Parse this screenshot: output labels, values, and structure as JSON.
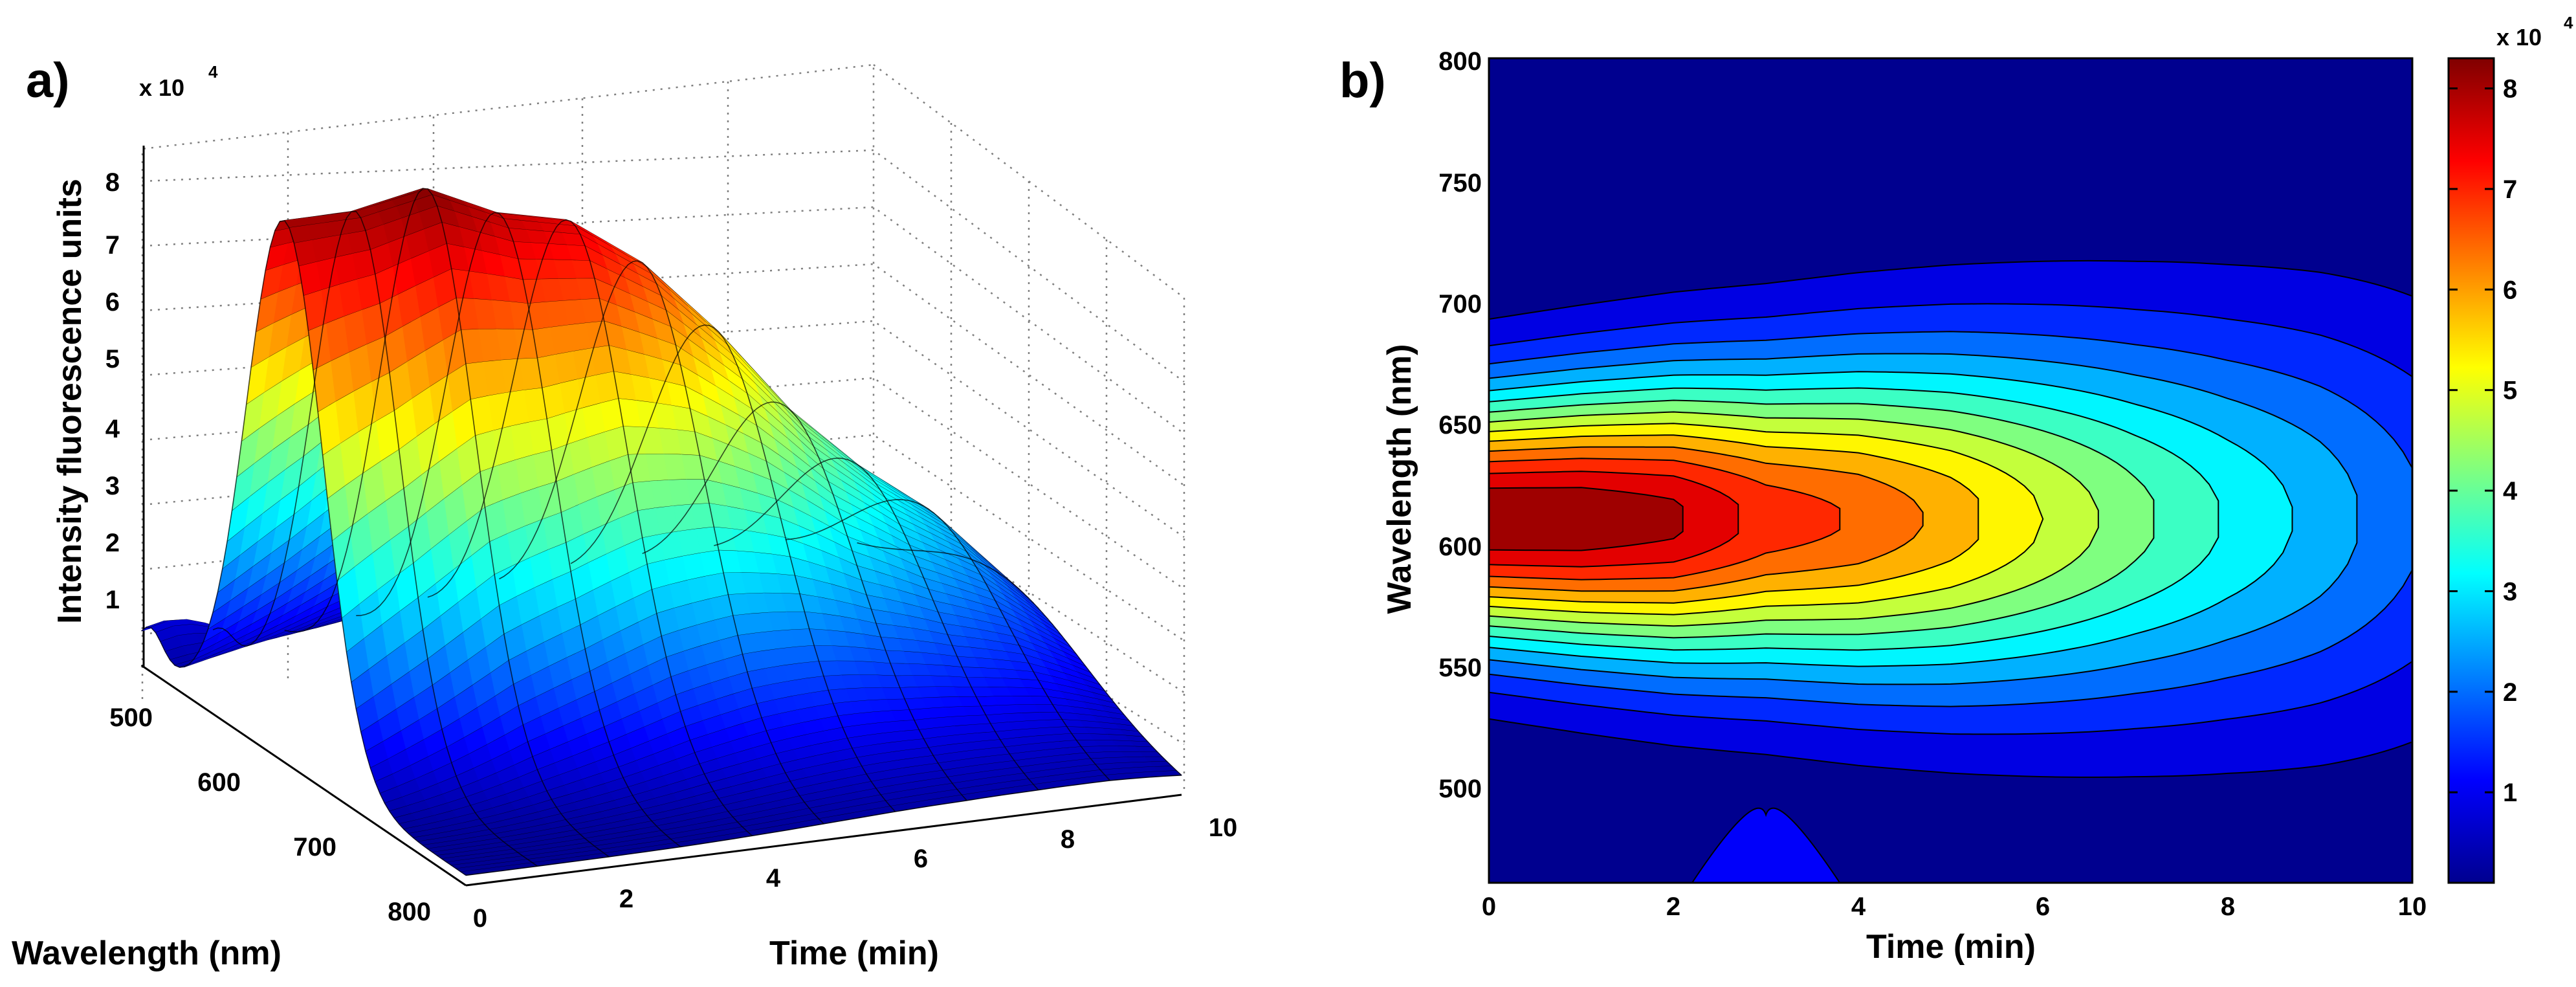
{
  "chart_data": [
    {
      "panel_label": "a)",
      "type": "surface3d",
      "title": "",
      "zlabel": "Intensity fluorescence units",
      "xlabel": "Time (min)",
      "ylabel": "Wavelength (nm)",
      "exponent_base": "x 10",
      "exponent_power": "4",
      "x_ticks": [
        "0",
        "2",
        "4",
        "6",
        "8",
        "10"
      ],
      "y_ticks": [
        "500",
        "600",
        "700",
        "800"
      ],
      "z_ticks": [
        "1",
        "2",
        "3",
        "4",
        "5",
        "6",
        "7",
        "8"
      ],
      "xlim": [
        0,
        10
      ],
      "ylim": [
        460,
        800
      ],
      "zlim": [
        0,
        8.5
      ],
      "grid": true,
      "colormap": "jet",
      "peak_profile": {
        "time": [
          0,
          1,
          2,
          3,
          4,
          5,
          6,
          7,
          8,
          9,
          10
        ],
        "peak_intensity": [
          7.9,
          7.9,
          8.1,
          7.6,
          7.35,
          6.6,
          5.5,
          4.2,
          3.2,
          2.4,
          1.3
        ]
      }
    },
    {
      "panel_label": "b)",
      "type": "contour",
      "title": "",
      "xlabel": "Time (min)",
      "ylabel": "Wavelength (nm)",
      "x_ticks": [
        "0",
        "2",
        "4",
        "6",
        "8",
        "10"
      ],
      "y_ticks": [
        "500",
        "550",
        "600",
        "650",
        "700",
        "750",
        "800"
      ],
      "xlim": [
        0,
        10
      ],
      "ylim": [
        460,
        800
      ],
      "colormap": "jet",
      "colorbar": {
        "ticks": [
          "1",
          "2",
          "3",
          "4",
          "5",
          "6",
          "7",
          "8"
        ],
        "range": [
          0.1,
          8.3
        ],
        "exponent_base": "x 10",
        "exponent_power": "4"
      },
      "peak_wavelength_nm": 610,
      "peak_intensity": [
        8.25,
        8.2,
        7.9,
        7.0,
        6.6,
        5.9,
        5.0,
        4.1,
        3.3,
        2.6,
        1.8
      ]
    }
  ]
}
